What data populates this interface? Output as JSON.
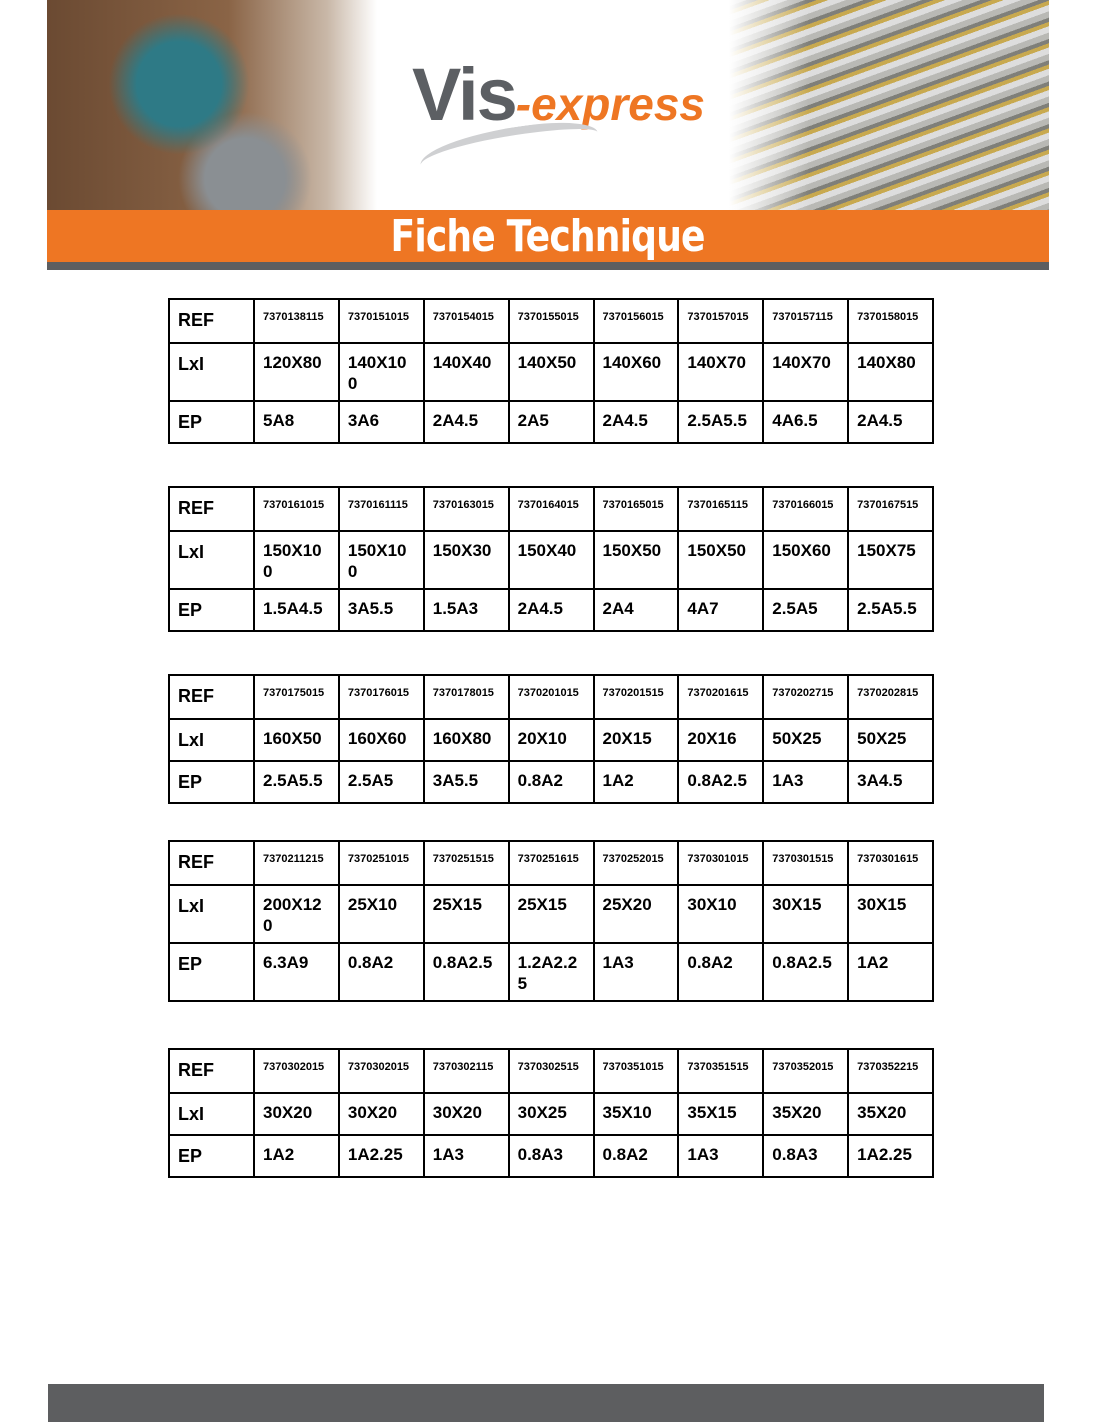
{
  "header": {
    "logo_main": "Vis",
    "logo_sub": "-express",
    "banner_title": "Fiche Technique",
    "brand_color": "#ee7623",
    "dark_bar_color": "#5d5e60"
  },
  "row_labels": [
    "REF",
    "LxI",
    "EP"
  ],
  "tables": [
    {
      "ref": [
        "7370138115",
        "7370151015",
        "7370154015",
        "7370155015",
        "7370156015",
        "7370157015",
        "7370157115",
        "7370158015"
      ],
      "lxl": [
        "120X80",
        "140X100",
        "140X40",
        "140X50",
        "140X60",
        "140X70",
        "140X70",
        "140X80"
      ],
      "ep": [
        "5A8",
        "3A6",
        "2A4.5",
        "2A5",
        "2A4.5",
        "2.5A5.5",
        "4A6.5",
        "2A4.5"
      ]
    },
    {
      "ref": [
        "7370161015",
        "7370161115",
        "7370163015",
        "7370164015",
        "7370165015",
        "7370165115",
        "7370166015",
        "7370167515"
      ],
      "lxl": [
        "150X100",
        "150X100",
        "150X30",
        "150X40",
        "150X50",
        "150X50",
        "150X60",
        "150X75"
      ],
      "ep": [
        "1.5A4.5",
        "3A5.5",
        "1.5A3",
        "2A4.5",
        "2A4",
        "4A7",
        "2.5A5",
        "2.5A5.5"
      ]
    },
    {
      "ref": [
        "7370175015",
        "7370176015",
        "7370178015",
        "7370201015",
        "7370201515",
        "7370201615",
        "7370202715",
        "7370202815"
      ],
      "lxl": [
        "160X50",
        "160X60",
        "160X80",
        "20X10",
        "20X15",
        "20X16",
        "50X25",
        "50X25"
      ],
      "ep": [
        "2.5A5.5",
        "2.5A5",
        "3A5.5",
        "0.8A2",
        "1A2",
        "0.8A2.5",
        "1A3",
        "3A4.5"
      ]
    },
    {
      "ref": [
        "7370211215",
        "7370251015",
        "7370251515",
        "7370251615",
        "7370252015",
        "7370301015",
        "7370301515",
        "7370301615"
      ],
      "lxl": [
        "200X120",
        "25X10",
        "25X15",
        "25X15",
        "25X20",
        "30X10",
        "30X15",
        "30X15"
      ],
      "ep": [
        "6.3A9",
        "0.8A2",
        "0.8A2.5",
        "1.2A2.25",
        "1A3",
        "0.8A2",
        "0.8A2.5",
        "1A2"
      ]
    },
    {
      "ref": [
        "7370302015",
        "7370302015",
        "7370302115",
        "7370302515",
        "7370351015",
        "7370351515",
        "7370352015",
        "7370352215"
      ],
      "lxl": [
        "30X20",
        "30X20",
        "30X20",
        "30X25",
        "35X10",
        "35X15",
        "35X20",
        "35X20"
      ],
      "ep": [
        "1A2",
        "1A2.25",
        "1A3",
        "0.8A3",
        "0.8A2",
        "1A3",
        "0.8A3",
        "1A2.25"
      ]
    }
  ]
}
